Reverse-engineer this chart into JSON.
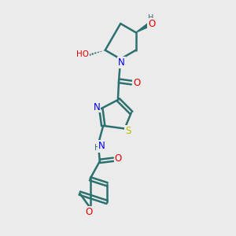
{
  "bg_color": "#ebebeb",
  "bond_color": "#2d7070",
  "bond_width": 1.8,
  "atom_colors": {
    "N": "#0000ee",
    "O": "#dd0000",
    "S": "#bbbb00",
    "C": "#2d7070",
    "H": "#2d7070"
  },
  "font_size": 7.5,
  "figsize": [
    3.0,
    3.0
  ],
  "dpi": 100
}
